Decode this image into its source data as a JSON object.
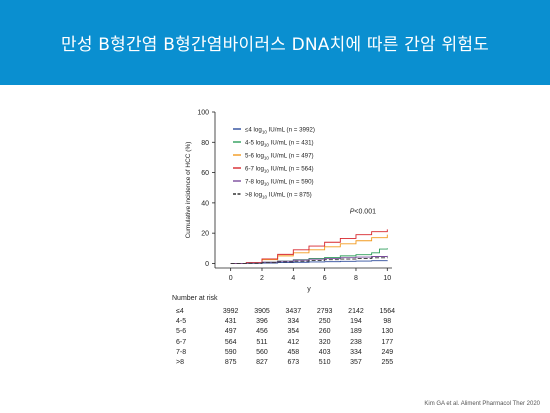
{
  "slide": {
    "title": "만성 B형간염 B형간염바이러스 DNA치에 따른 간암 위험도",
    "citation": "Kim GA et al. Aliment Pharmacol Ther 2020",
    "colors": {
      "banner": "#0a8fd0",
      "background": "#ffffff"
    }
  },
  "chart_data": {
    "type": "line",
    "title": "",
    "xlabel": "y",
    "ylabel": "Cumulative incidence of HCC (%)",
    "xlim": [
      -1,
      10.3
    ],
    "ylim": [
      -3,
      100
    ],
    "x_ticks": [
      0,
      2,
      4,
      6,
      8,
      10
    ],
    "y_ticks": [
      0,
      20,
      40,
      60,
      80,
      100
    ],
    "annotation": "P<0.001",
    "legend_position": "top-left",
    "grid": false,
    "series": [
      {
        "name": "≤4 log10 IU/mL (n = 3992)",
        "legend_label": "≤4 log",
        "legend_unit": "IU/mL (n = 3992)",
        "color": "#2e4c9c",
        "dash": "",
        "points": [
          [
            0,
            0
          ],
          [
            1,
            0.1
          ],
          [
            2,
            0.3
          ],
          [
            3,
            0.6
          ],
          [
            4,
            0.8
          ],
          [
            5,
            1.0
          ],
          [
            6,
            1.2
          ],
          [
            7,
            1.4
          ],
          [
            8,
            1.6
          ],
          [
            9,
            1.8
          ],
          [
            10,
            2.0
          ]
        ]
      },
      {
        "name": "4-5 log10 IU/mL (n = 431)",
        "legend_label": "4-5 log",
        "legend_unit": "IU/mL (n = 431)",
        "color": "#2e9e5b",
        "dash": "",
        "points": [
          [
            0,
            0
          ],
          [
            1,
            0.2
          ],
          [
            2,
            0.8
          ],
          [
            3,
            1.6
          ],
          [
            4,
            2.5
          ],
          [
            5,
            3.3
          ],
          [
            6,
            4.0
          ],
          [
            7,
            5.0
          ],
          [
            8,
            5.8
          ],
          [
            9,
            7.0
          ],
          [
            9.5,
            9.5
          ],
          [
            10,
            10.0
          ]
        ]
      },
      {
        "name": "5-6 log10 IU/mL (n = 497)",
        "legend_label": "5-6 log",
        "legend_unit": "IU/mL (n = 497)",
        "color": "#f29a1e",
        "dash": "",
        "points": [
          [
            0,
            0
          ],
          [
            1,
            0.5
          ],
          [
            2,
            2.5
          ],
          [
            3,
            5.0
          ],
          [
            4,
            7.0
          ],
          [
            5,
            9.0
          ],
          [
            6,
            11.0
          ],
          [
            7,
            13.0
          ],
          [
            8,
            15.0
          ],
          [
            9,
            17.0
          ],
          [
            10,
            19.0
          ]
        ]
      },
      {
        "name": "6-7 log10 IU/mL (n = 564)",
        "legend_label": "6-7 log",
        "legend_unit": "IU/mL (n = 564)",
        "color": "#d7262c",
        "dash": "",
        "points": [
          [
            0,
            0
          ],
          [
            1,
            0.6
          ],
          [
            2,
            3.0
          ],
          [
            3,
            6.0
          ],
          [
            4,
            9.0
          ],
          [
            5,
            11.5
          ],
          [
            6,
            14.0
          ],
          [
            7,
            16.5
          ],
          [
            8,
            19.0
          ],
          [
            9,
            21.0
          ],
          [
            10,
            22.5
          ]
        ]
      },
      {
        "name": "7-8 log10 IU/mL (n = 590)",
        "legend_label": "7-8 log",
        "legend_unit": "IU/mL (n = 590)",
        "color": "#7a4b9c",
        "dash": "",
        "points": [
          [
            0,
            0
          ],
          [
            1,
            0.2
          ],
          [
            2,
            0.8
          ],
          [
            3,
            1.5
          ],
          [
            4,
            2.2
          ],
          [
            5,
            2.8
          ],
          [
            6,
            3.3
          ],
          [
            7,
            3.8
          ],
          [
            8,
            4.2
          ],
          [
            9,
            4.6
          ],
          [
            10,
            5.0
          ]
        ]
      },
      {
        "name": ">8 log10 IU/mL (n = 875)",
        "legend_label": ">8 log",
        "legend_unit": "IU/mL (n = 875)",
        "color": "#333333",
        "dash": "4,2",
        "points": [
          [
            0,
            0
          ],
          [
            1,
            0.1
          ],
          [
            2,
            0.5
          ],
          [
            3,
            1.0
          ],
          [
            4,
            1.5
          ],
          [
            5,
            2.0
          ],
          [
            6,
            2.5
          ],
          [
            7,
            2.9
          ],
          [
            8,
            3.3
          ],
          [
            9,
            3.7
          ],
          [
            10,
            4.0
          ]
        ]
      }
    ],
    "risk_table": {
      "title": "Number at risk",
      "times": [
        0,
        2,
        4,
        6,
        8,
        10
      ],
      "rows": [
        {
          "label": "≤4",
          "values": [
            "3992",
            "3905",
            "3437",
            "2793",
            "2142",
            "1564"
          ]
        },
        {
          "label": "4-5",
          "values": [
            "431",
            "396",
            "334",
            "250",
            "194",
            "98"
          ]
        },
        {
          "label": "5-6",
          "values": [
            "497",
            "456",
            "354",
            "260",
            "189",
            "130"
          ]
        },
        {
          "label": "6-7",
          "values": [
            "564",
            "511",
            "412",
            "320",
            "238",
            "177"
          ]
        },
        {
          "label": "7-8",
          "values": [
            "590",
            "560",
            "458",
            "403",
            "334",
            "249"
          ]
        },
        {
          "label": ">8",
          "values": [
            "875",
            "827",
            "673",
            "510",
            "357",
            "255"
          ]
        }
      ]
    }
  }
}
